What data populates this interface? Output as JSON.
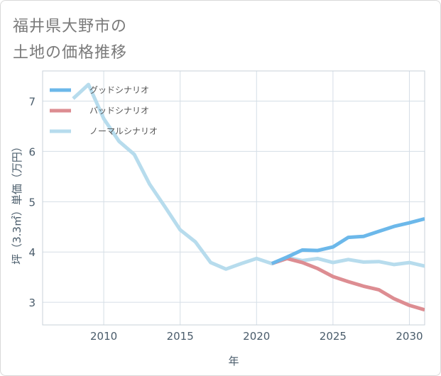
{
  "page": {
    "title_line1": "福井県大野市の",
    "title_line2": "土地の価格推移"
  },
  "chart_data": {
    "type": "line",
    "title": "福井県大野市の土地の価格推移",
    "xlabel": "年",
    "ylabel": "坪（3.3㎡）単価（万円）",
    "xlim": [
      2006,
      2031
    ],
    "ylim": [
      2.55,
      7.6
    ],
    "xticks": [
      2010,
      2015,
      2020,
      2025,
      2030
    ],
    "yticks": [
      3,
      4,
      5,
      6,
      7
    ],
    "xtick_labels": [
      "2010",
      "2015",
      "2020",
      "2025",
      "2030"
    ],
    "ytick_labels": [
      "3",
      "4",
      "5",
      "6",
      "7"
    ],
    "grid": true,
    "legend_position": "top-left",
    "series": [
      {
        "name": "グッドシナリオ",
        "color": "#6cb8ea",
        "x": [
          2021,
          2022,
          2023,
          2024,
          2025,
          2026,
          2027,
          2028,
          2029,
          2030,
          2031
        ],
        "y": [
          3.77,
          3.9,
          4.04,
          4.03,
          4.1,
          4.29,
          4.31,
          4.41,
          4.51,
          4.58,
          4.66
        ]
      },
      {
        "name": "バッドシナリオ",
        "color": "#dd8d92",
        "x": [
          2021,
          2022,
          2023,
          2024,
          2025,
          2026,
          2027,
          2028,
          2029,
          2030,
          2031
        ],
        "y": [
          3.77,
          3.87,
          3.79,
          3.67,
          3.51,
          3.41,
          3.32,
          3.25,
          3.07,
          2.94,
          2.85
        ]
      },
      {
        "name": "ノーマルシナリオ",
        "color": "#b7dced",
        "x": [
          2008,
          2009,
          2010,
          2011,
          2012,
          2013,
          2014,
          2015,
          2016,
          2017,
          2018,
          2019,
          2020,
          2021,
          2022,
          2023,
          2024,
          2025,
          2026,
          2027,
          2028,
          2029,
          2030,
          2031
        ],
        "y": [
          7.05,
          7.33,
          6.65,
          6.2,
          5.94,
          5.35,
          4.9,
          4.44,
          4.2,
          3.79,
          3.66,
          3.77,
          3.87,
          3.77,
          3.89,
          3.83,
          3.87,
          3.79,
          3.85,
          3.8,
          3.81,
          3.75,
          3.79,
          3.72
        ]
      }
    ]
  }
}
